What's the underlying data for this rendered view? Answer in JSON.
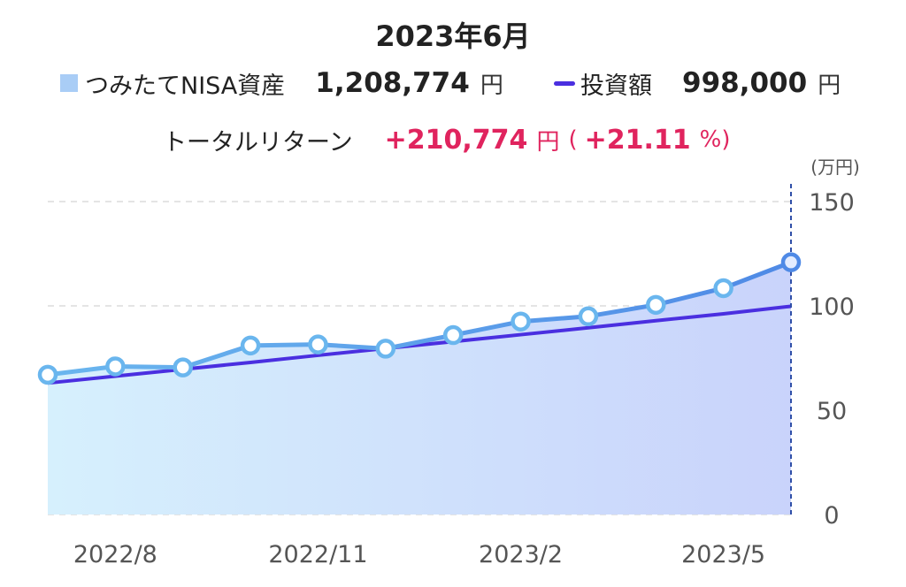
{
  "header": {
    "title": "2023年6月",
    "legend": {
      "asset_label": "つみたてNISA資産",
      "asset_value": "1,208,774",
      "asset_unit": "円",
      "invest_label": "投資額",
      "invest_value": "998,000",
      "invest_unit": "円"
    },
    "total_return": {
      "label": "トータルリターン",
      "value": "+210,774",
      "unit": "円",
      "paren_open": "(",
      "percent": "+21.11",
      "percent_unit": "%)"
    }
  },
  "colors": {
    "asset_line": "#4f8ae6",
    "asset_marker": "#6ab6ee",
    "invest_line": "#4a2fe0",
    "fill_start": "#d6f0fd",
    "fill_end": "#c9d3fb",
    "positive": "#e0245e"
  },
  "chart_data": {
    "type": "line",
    "x": [
      "2022/7",
      "2022/8",
      "2022/9",
      "2022/10",
      "2022/11",
      "2022/12",
      "2023/1",
      "2023/2",
      "2023/3",
      "2023/4",
      "2023/5",
      "2023/6"
    ],
    "series": [
      {
        "name": "つみたてNISA資産",
        "values": [
          67,
          71,
          70.5,
          81,
          81.5,
          79.5,
          86,
          92.5,
          95,
          100.5,
          108.5,
          120.9
        ]
      },
      {
        "name": "投資額",
        "values": [
          63,
          66.3,
          69.6,
          72.9,
          76.3,
          79.6,
          82.9,
          86.2,
          89.5,
          92.9,
          96.2,
          99.8
        ]
      }
    ],
    "x_tick_labels": [
      "2022/8",
      "2022/11",
      "2023/2",
      "2023/5"
    ],
    "x_tick_index": [
      1,
      4,
      7,
      10
    ],
    "y_unit_label": "(万円)",
    "y_ticks": [
      "150",
      "100",
      "50",
      "0"
    ],
    "y_tick_values": [
      150,
      100,
      50,
      0
    ],
    "ylim": [
      0,
      150
    ],
    "grid": true,
    "y_axis_position": "right"
  }
}
